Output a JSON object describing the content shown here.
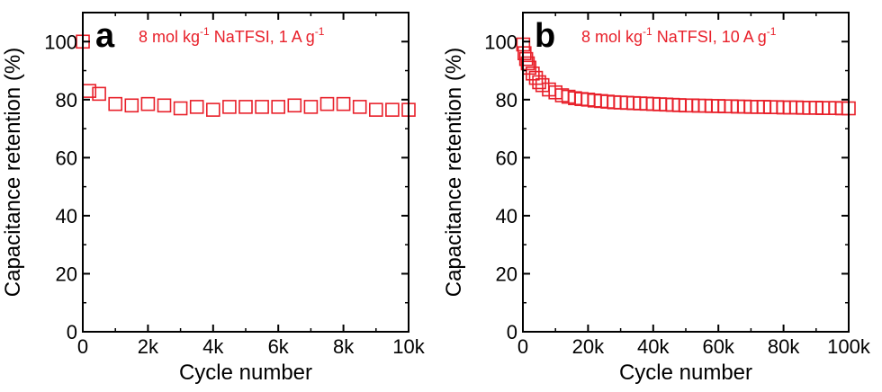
{
  "figure": {
    "panels": [
      {
        "panel_label": "a",
        "annotation": {
          "prefix": "8 mol kg",
          "sup": "-1",
          "suffix": " NaTFSI, 1 A g",
          "sup2": "-1"
        }
      },
      {
        "panel_label": "b",
        "annotation": {
          "prefix": "8 mol kg",
          "sup": "-1",
          "suffix": " NaTFSI, 10 A g",
          "sup2": "-1"
        }
      }
    ]
  },
  "colors": {
    "series": "#e8202a",
    "axes": "#000000",
    "text": "#000000"
  },
  "chart_data": [
    {
      "type": "scatter",
      "title": "",
      "xlabel": "Cycle number",
      "ylabel": "Capacitance retention (%)",
      "xlim": [
        0,
        10000
      ],
      "ylim": [
        0,
        110
      ],
      "xticks": [
        0,
        2000,
        4000,
        6000,
        8000,
        10000
      ],
      "xtick_labels": [
        "0",
        "2k",
        "4k",
        "6k",
        "8k",
        "10k"
      ],
      "yticks": [
        0,
        20,
        40,
        60,
        80,
        100
      ],
      "ytick_labels": [
        "0",
        "20",
        "40",
        "60",
        "80",
        "100"
      ],
      "grid": false,
      "legend": null,
      "marker": "open-square",
      "series": [
        {
          "x": [
            1,
            200,
            500,
            1000,
            1500,
            2000,
            2500,
            3000,
            3500,
            4000,
            4500,
            5000,
            5500,
            6000,
            6500,
            7000,
            7500,
            8000,
            8500,
            9000,
            9500,
            10000
          ],
          "values": [
            100,
            83,
            82,
            78.5,
            78,
            78.5,
            78,
            77,
            77.5,
            76.5,
            77.5,
            77.5,
            77.5,
            77.5,
            78,
            77.5,
            78.5,
            78.5,
            77.5,
            76.5,
            76.5,
            76.5
          ]
        }
      ]
    },
    {
      "type": "scatter",
      "title": "",
      "xlabel": "Cycle number",
      "ylabel": "Capacitance retention (%)",
      "xlim": [
        0,
        100000
      ],
      "ylim": [
        0,
        110
      ],
      "xticks": [
        0,
        20000,
        40000,
        60000,
        80000,
        100000
      ],
      "xtick_labels": [
        "0",
        "20k",
        "40k",
        "60k",
        "80k",
        "100k"
      ],
      "yticks": [
        0,
        20,
        40,
        60,
        80,
        100
      ],
      "ytick_labels": [
        "0",
        "20",
        "40",
        "60",
        "80",
        "100"
      ],
      "grid": false,
      "legend": null,
      "marker": "open-square",
      "series": [
        {
          "x": [
            100,
            500,
            1000,
            1500,
            2000,
            3000,
            4000,
            5000,
            6000,
            8000,
            10000,
            12000,
            14000,
            16000,
            18000,
            20000,
            22000,
            24000,
            26000,
            28000,
            30000,
            32000,
            34000,
            36000,
            38000,
            40000,
            42000,
            44000,
            46000,
            48000,
            50000,
            52000,
            54000,
            56000,
            58000,
            60000,
            62000,
            64000,
            66000,
            68000,
            70000,
            72000,
            74000,
            76000,
            78000,
            80000,
            82000,
            84000,
            86000,
            88000,
            90000,
            92000,
            94000,
            96000,
            98000,
            100000
          ],
          "values": [
            99,
            96,
            94,
            92.5,
            91,
            89,
            87.5,
            86,
            85,
            83.5,
            82.5,
            81.5,
            81,
            80.5,
            80.2,
            80,
            79.7,
            79.5,
            79.3,
            79.1,
            79,
            78.9,
            78.8,
            78.7,
            78.6,
            78.5,
            78.4,
            78.3,
            78.2,
            78.1,
            78,
            78,
            77.9,
            77.9,
            77.8,
            77.8,
            77.7,
            77.7,
            77.6,
            77.6,
            77.5,
            77.5,
            77.5,
            77.4,
            77.4,
            77.3,
            77.3,
            77.3,
            77.2,
            77.2,
            77.2,
            77.1,
            77.1,
            77.1,
            77,
            77
          ]
        }
      ]
    }
  ]
}
